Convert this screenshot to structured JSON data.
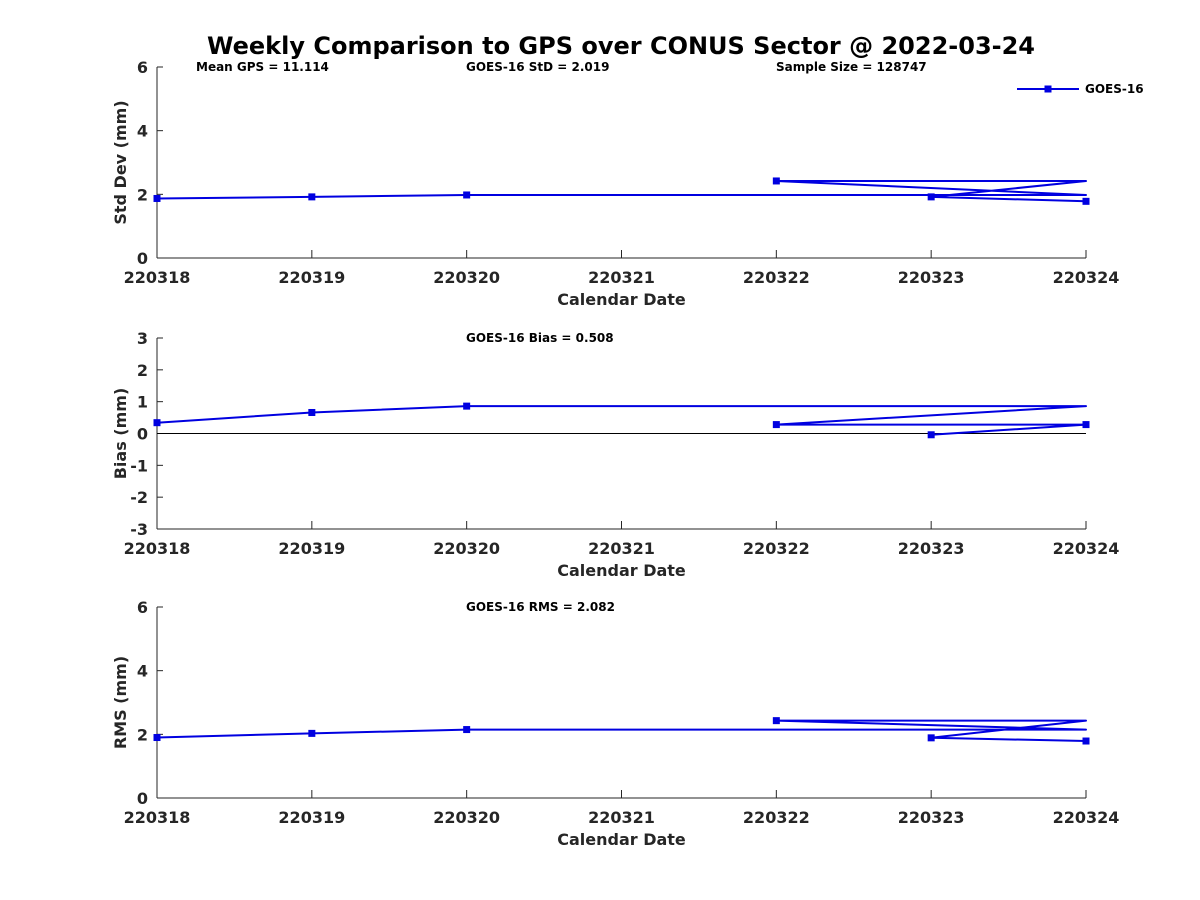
{
  "title": "Weekly Comparison to GPS over CONUS Sector @ 2022-03-24",
  "colors": {
    "series": "#0000e0",
    "axis": "#262626",
    "zero_line": "#000000"
  },
  "chart_data": [
    {
      "type": "line",
      "id": "std",
      "xlabel": "Calendar Date",
      "ylabel": "Std Dev (mm)",
      "categories": [
        "220318",
        "220319",
        "220320",
        "220321",
        "220322",
        "220323",
        "220324"
      ],
      "ylim": [
        0,
        6
      ],
      "yticks": [
        "0",
        "2",
        "4",
        "6"
      ],
      "annotations": [
        "Mean GPS = 11.114",
        "GOES-16 StD = 2.019",
        "Sample Size = 128747"
      ],
      "legend": {
        "entries": [
          "GOES-16"
        ],
        "position": "top-right"
      },
      "zero_line": false,
      "series": [
        {
          "name": "GOES-16",
          "x": [
            0,
            1,
            2,
            6,
            4,
            6,
            5,
            6
          ],
          "y": [
            1.87,
            1.92,
            1.98,
            1.98,
            2.42,
            2.42,
            1.92,
            1.78
          ],
          "markers": [
            true,
            true,
            true,
            false,
            true,
            false,
            true,
            true
          ]
        }
      ]
    },
    {
      "type": "line",
      "id": "bias",
      "xlabel": "Calendar Date",
      "ylabel": "Bias (mm)",
      "categories": [
        "220318",
        "220319",
        "220320",
        "220321",
        "220322",
        "220323",
        "220324"
      ],
      "ylim": [
        -3,
        3
      ],
      "yticks": [
        "-3",
        "-2",
        "-1",
        "0",
        "1",
        "2",
        "3"
      ],
      "annotations": [
        "GOES-16 Bias  = 0.508"
      ],
      "zero_line": true,
      "series": [
        {
          "name": "GOES-16",
          "x": [
            0,
            1,
            2,
            6,
            4,
            6,
            5,
            6
          ],
          "y": [
            0.34,
            0.66,
            0.86,
            0.86,
            0.28,
            0.28,
            -0.04,
            0.28
          ],
          "markers": [
            true,
            true,
            true,
            false,
            true,
            false,
            true,
            true
          ]
        }
      ]
    },
    {
      "type": "line",
      "id": "rms",
      "xlabel": "Calendar Date",
      "ylabel": "RMS (mm)",
      "categories": [
        "220318",
        "220319",
        "220320",
        "220321",
        "220322",
        "220323",
        "220324"
      ],
      "ylim": [
        0,
        6
      ],
      "yticks": [
        "0",
        "2",
        "4",
        "6"
      ],
      "annotations": [
        "GOES-16 RMS = 2.082"
      ],
      "zero_line": false,
      "series": [
        {
          "name": "GOES-16",
          "x": [
            0,
            1,
            2,
            6,
            4,
            6,
            5,
            6
          ],
          "y": [
            1.9,
            2.03,
            2.15,
            2.15,
            2.43,
            2.43,
            1.89,
            1.79
          ],
          "markers": [
            true,
            true,
            true,
            false,
            true,
            false,
            true,
            true
          ]
        }
      ]
    }
  ]
}
